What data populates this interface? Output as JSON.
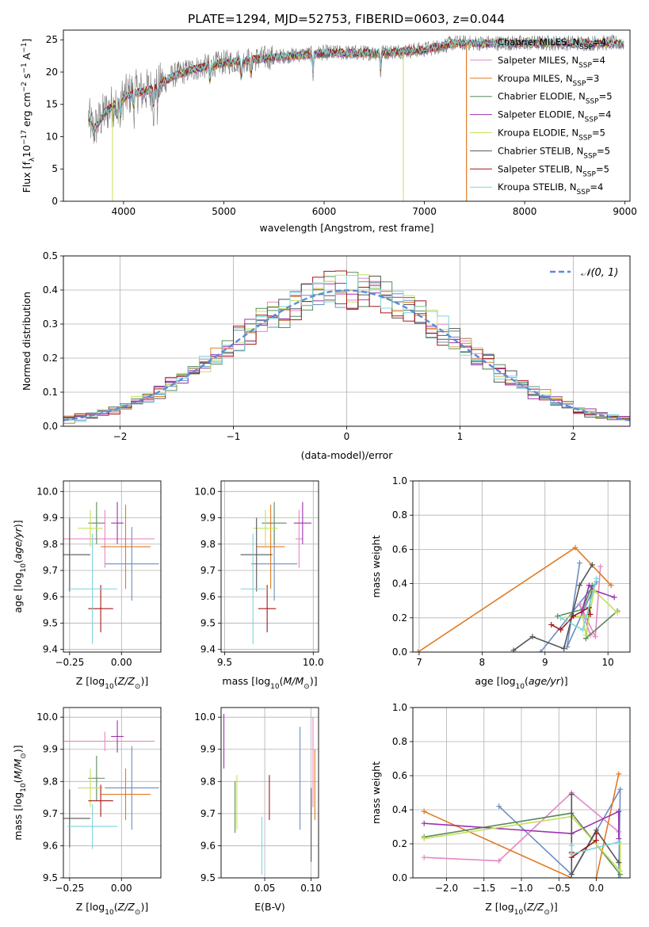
{
  "figure_title": "PLATE=1294, MJD=52753, FIBERID=0603, z=0.044",
  "colors": {
    "Chabrier MILES": "#6c8ebf",
    "Salpeter MILES": "#e587c6",
    "Kroupa MILES": "#e07b22",
    "Chabrier ELODIE": "#5a8a5a",
    "Salpeter ELODIE": "#9b32b0",
    "Kroupa ELODIE": "#c5e05a",
    "Chabrier STELIB": "#555555",
    "Salpeter STELIB": "#a31818",
    "Kroupa STELIB": "#7ed3db"
  },
  "chart_data": [
    {
      "id": "spectrum",
      "type": "line",
      "xlabel": "wavelength [Angstrom, rest frame]",
      "ylabel": "Flux [f_λ10^-17 erg cm^-2 s^-1 A^-1]",
      "xlim": [
        3400,
        9050
      ],
      "ylim": [
        0,
        26.5
      ],
      "xticks": [
        4000,
        5000,
        6000,
        7000,
        8000,
        9000
      ],
      "yticks": [
        0,
        5,
        10,
        15,
        20,
        25
      ],
      "legend_position": "right",
      "legend": [
        {
          "label": "Chabrier MILES, N",
          "sub": "SSP",
          "eq": "=4"
        },
        {
          "label": "Salpeter MILES, N",
          "sub": "SSP",
          "eq": "=4"
        },
        {
          "label": "Kroupa MILES, N",
          "sub": "SSP",
          "eq": "=3"
        },
        {
          "label": "Chabrier ELODIE, N",
          "sub": "SSP",
          "eq": "=5"
        },
        {
          "label": "Salpeter ELODIE, N",
          "sub": "SSP",
          "eq": "=4"
        },
        {
          "label": "Kroupa ELODIE, N",
          "sub": "SSP",
          "eq": "=5"
        },
        {
          "label": "Chabrier STELIB, N",
          "sub": "SSP",
          "eq": "=5"
        },
        {
          "label": "Salpeter STELIB, N",
          "sub": "SSP",
          "eq": "=5"
        },
        {
          "label": "Kroupa STELIB, N",
          "sub": "SSP",
          "eq": "=4"
        }
      ],
      "data_continuum": {
        "x": [
          3650,
          3700,
          3800,
          3900,
          4000,
          4100,
          4200,
          4300,
          4400,
          4500,
          4700,
          5000,
          5300,
          5600,
          6000,
          6500,
          7000,
          7300,
          7400
        ],
        "y": [
          13,
          11,
          13.5,
          15,
          16,
          17,
          17,
          17.5,
          18.5,
          19.5,
          20.5,
          21.5,
          22,
          22.5,
          23,
          23,
          23.5,
          24.5,
          24.5
        ]
      },
      "dips": [
        {
          "x": 3890,
          "y": 0,
          "series": "Kroupa ELODIE"
        },
        {
          "x": 6790,
          "y": 0,
          "series": "Kroupa ELODIE"
        },
        {
          "x": 7420,
          "y": 0,
          "series": "Kroupa MILES"
        }
      ]
    },
    {
      "id": "residuals",
      "type": "line",
      "xlabel": "(data-model)/error",
      "ylabel": "Normed distribution",
      "xlim": [
        -2.5,
        2.5
      ],
      "ylim": [
        0,
        0.5
      ],
      "xticks": [
        -2,
        -1,
        0,
        1,
        2
      ],
      "yticks": [
        0.0,
        0.1,
        0.2,
        0.3,
        0.4,
        0.5
      ],
      "legend": [
        {
          "label": "𝒩(0, 1)"
        }
      ],
      "legend_position": "top-right",
      "bin_width": 0.1
    },
    {
      "id": "age_vs_Z",
      "type": "scatter",
      "xlabel": "Z [log10(Z/Z⊙)]",
      "ylabel": "age  [log10(age/yr)]",
      "xlim": [
        -0.28,
        0.19
      ],
      "ylim": [
        9.39,
        10.04
      ],
      "xticks": [
        -0.25,
        0.0
      ],
      "yticks": [
        9.4,
        9.5,
        9.6,
        9.7,
        9.8,
        9.9,
        10.0
      ],
      "points": [
        {
          "series": "Chabrier MILES",
          "x": 0.05,
          "xerr": 0.13,
          "y": 9.725,
          "yerr": 0.14
        },
        {
          "series": "Salpeter MILES",
          "x": -0.08,
          "xerr": 0.24,
          "y": 9.82,
          "yerr": 0.11
        },
        {
          "series": "Kroupa MILES",
          "x": 0.02,
          "xerr": 0.12,
          "y": 9.79,
          "yerr": 0.16
        },
        {
          "series": "Chabrier ELODIE",
          "x": -0.12,
          "xerr": 0.04,
          "y": 9.88,
          "yerr": 0.08
        },
        {
          "series": "Salpeter ELODIE",
          "x": -0.02,
          "xerr": 0.03,
          "y": 9.88,
          "yerr": 0.08
        },
        {
          "series": "Kroupa ELODIE",
          "x": -0.15,
          "xerr": 0.06,
          "y": 9.86,
          "yerr": 0.07
        },
        {
          "series": "Chabrier STELIB",
          "x": -0.25,
          "xerr": 0.1,
          "y": 9.76,
          "yerr": 0.14
        },
        {
          "series": "Salpeter STELIB",
          "x": -0.1,
          "xerr": 0.06,
          "y": 9.555,
          "yerr": 0.09
        },
        {
          "series": "Kroupa STELIB",
          "x": -0.14,
          "xerr": 0.12,
          "y": 9.63,
          "yerr": 0.21
        }
      ]
    },
    {
      "id": "age_vs_mass",
      "type": "scatter",
      "xlabel": "mass [log10(M/M⊙)]",
      "ylabel": "",
      "xlim": [
        9.48,
        10.03
      ],
      "ylim": [
        9.39,
        10.04
      ],
      "xticks": [
        9.5,
        10.0
      ],
      "yticks": [
        9.4,
        9.5,
        9.6,
        9.7,
        9.8,
        9.9,
        10.0
      ],
      "points": [
        {
          "series": "Chabrier MILES",
          "x": 9.78,
          "xerr": 0.13,
          "y": 9.725,
          "yerr": 0.14
        },
        {
          "series": "Salpeter MILES",
          "x": 9.92,
          "xerr": 0.02,
          "y": 9.82,
          "yerr": 0.11
        },
        {
          "series": "Kroupa MILES",
          "x": 9.76,
          "xerr": 0.08,
          "y": 9.79,
          "yerr": 0.16
        },
        {
          "series": "Chabrier ELODIE",
          "x": 9.78,
          "xerr": 0.07,
          "y": 9.88,
          "yerr": 0.08
        },
        {
          "series": "Salpeter ELODIE",
          "x": 9.94,
          "xerr": 0.05,
          "y": 9.88,
          "yerr": 0.08
        },
        {
          "series": "Kroupa ELODIE",
          "x": 9.73,
          "xerr": 0.07,
          "y": 9.86,
          "yerr": 0.07
        },
        {
          "series": "Chabrier STELIB",
          "x": 9.68,
          "xerr": 0.09,
          "y": 9.76,
          "yerr": 0.14
        },
        {
          "series": "Salpeter STELIB",
          "x": 9.74,
          "xerr": 0.05,
          "y": 9.555,
          "yerr": 0.09
        },
        {
          "series": "Kroupa STELIB",
          "x": 9.66,
          "xerr": 0.07,
          "y": 9.63,
          "yerr": 0.21
        }
      ]
    },
    {
      "id": "weight_vs_age",
      "type": "line",
      "xlabel": "age  [log10(age/yr)]",
      "ylabel": "mass weight",
      "xlim": [
        6.9,
        10.35
      ],
      "ylim": [
        0,
        1.0
      ],
      "xticks": [
        7,
        8,
        9,
        10
      ],
      "yticks": [
        0.0,
        0.2,
        0.4,
        0.6,
        0.8,
        1.0
      ],
      "series": [
        {
          "name": "Chabrier MILES",
          "x": [
            9.55,
            9.35,
            9.82,
            8.93
          ],
          "y": [
            0.52,
            0.03,
            0.41,
            0.0
          ]
        },
        {
          "name": "Salpeter MILES",
          "x": [
            9.88,
            9.8,
            9.55,
            9.72
          ],
          "y": [
            0.5,
            0.09,
            0.28,
            0.1
          ]
        },
        {
          "name": "Kroupa MILES",
          "x": [
            6.98,
            9.48,
            10.05
          ],
          "y": [
            0.0,
            0.61,
            0.39
          ]
        },
        {
          "name": "Chabrier ELODIE",
          "x": [
            9.2,
            9.6,
            9.75,
            9.65,
            10.15
          ],
          "y": [
            0.21,
            0.25,
            0.39,
            0.08,
            0.24
          ]
        },
        {
          "name": "Salpeter ELODIE",
          "x": [
            9.58,
            9.7,
            9.78,
            10.1
          ],
          "y": [
            0.23,
            0.39,
            0.36,
            0.32
          ]
        },
        {
          "name": "Kroupa ELODIE",
          "x": [
            9.25,
            9.6,
            9.65,
            9.78,
            10.15
          ],
          "y": [
            0.2,
            0.21,
            0.1,
            0.36,
            0.23
          ]
        },
        {
          "name": "Chabrier STELIB",
          "x": [
            8.5,
            8.8,
            9.3,
            9.55,
            9.75
          ],
          "y": [
            0.01,
            0.09,
            0.02,
            0.39,
            0.51
          ]
        },
        {
          "name": "Salpeter STELIB",
          "x": [
            9.1,
            9.25,
            9.45,
            9.7,
            9.72
          ],
          "y": [
            0.16,
            0.13,
            0.21,
            0.26,
            0.22
          ]
        },
        {
          "name": "Kroupa STELIB",
          "x": [
            9.25,
            9.6,
            9.65,
            9.82
          ],
          "y": [
            0.2,
            0.13,
            0.2,
            0.43
          ]
        }
      ]
    },
    {
      "id": "mass_vs_Z",
      "type": "scatter",
      "xlabel": "Z [log10(Z/Z⊙)]",
      "ylabel": "mass [log10(M/M⊙)]",
      "xlim": [
        -0.28,
        0.19
      ],
      "ylim": [
        9.5,
        10.03
      ],
      "xticks": [
        -0.25,
        0.0
      ],
      "yticks": [
        9.5,
        9.6,
        9.7,
        9.8,
        9.9,
        10.0
      ],
      "points": [
        {
          "series": "Chabrier MILES",
          "x": 0.05,
          "xerr": 0.13,
          "y": 9.78,
          "yerr": 0.13
        },
        {
          "series": "Salpeter MILES",
          "x": -0.08,
          "xerr": 0.24,
          "y": 9.925,
          "yerr": 0.03
        },
        {
          "series": "Kroupa MILES",
          "x": 0.02,
          "xerr": 0.12,
          "y": 9.76,
          "yerr": 0.08
        },
        {
          "series": "Chabrier ELODIE",
          "x": -0.12,
          "xerr": 0.04,
          "y": 9.81,
          "yerr": 0.07
        },
        {
          "series": "Salpeter ELODIE",
          "x": -0.02,
          "xerr": 0.03,
          "y": 9.94,
          "yerr": 0.05
        },
        {
          "series": "Kroupa ELODIE",
          "x": -0.15,
          "xerr": 0.06,
          "y": 9.78,
          "yerr": 0.06
        },
        {
          "series": "Chabrier STELIB",
          "x": -0.25,
          "xerr": 0.1,
          "y": 9.685,
          "yerr": 0.09
        },
        {
          "series": "Salpeter STELIB",
          "x": -0.1,
          "xerr": 0.06,
          "y": 9.74,
          "yerr": 0.05
        },
        {
          "series": "Kroupa STELIB",
          "x": -0.14,
          "xerr": 0.12,
          "y": 9.66,
          "yerr": 0.07
        }
      ]
    },
    {
      "id": "mass_vs_ebv",
      "type": "scatter",
      "xlabel": "E(B-V)",
      "ylabel": "",
      "xlim": [
        0.003,
        0.108
      ],
      "ylim": [
        9.5,
        10.03
      ],
      "xticks": [
        0.05,
        0.1
      ],
      "yticks": [
        9.5,
        9.6,
        9.7,
        9.8,
        9.9,
        10.0
      ],
      "points": [
        {
          "series": "Chabrier MILES",
          "x": 0.088,
          "xerr": 0,
          "y": 9.81,
          "yerr": 0.16
        },
        {
          "series": "Salpeter MILES",
          "x": 0.102,
          "xerr": 0,
          "y": 9.86,
          "yerr": 0.14
        },
        {
          "series": "Kroupa MILES",
          "x": 0.104,
          "xerr": 0,
          "y": 9.79,
          "yerr": 0.11
        },
        {
          "series": "Chabrier ELODIE",
          "x": 0.018,
          "xerr": 0,
          "y": 9.72,
          "yerr": 0.08
        },
        {
          "series": "Salpeter ELODIE",
          "x": 0.006,
          "xerr": 0,
          "y": 9.925,
          "yerr": 0.085
        },
        {
          "series": "Kroupa ELODIE",
          "x": 0.02,
          "xerr": 0,
          "y": 9.735,
          "yerr": 0.085
        },
        {
          "series": "Chabrier STELIB",
          "x": 0.1,
          "xerr": 0,
          "y": 9.665,
          "yerr": 0.115
        },
        {
          "series": "Salpeter STELIB",
          "x": 0.055,
          "xerr": 0,
          "y": 9.75,
          "yerr": 0.07
        },
        {
          "series": "Kroupa STELIB",
          "x": 0.047,
          "xerr": 0,
          "y": 9.6,
          "yerr": 0.09
        }
      ]
    },
    {
      "id": "weight_vs_Z",
      "type": "line",
      "xlabel": "Z [log10(Z/Z⊙)]",
      "ylabel": "mass weight",
      "xlim": [
        -2.45,
        0.45
      ],
      "ylim": [
        0,
        1.0
      ],
      "xticks": [
        -2.0,
        -1.5,
        -1.0,
        -0.5,
        0.0
      ],
      "yticks": [
        0.0,
        0.2,
        0.4,
        0.6,
        0.8,
        1.0
      ],
      "series": [
        {
          "name": "Chabrier MILES",
          "x": [
            -1.3,
            -0.33,
            0.32,
            0.3
          ],
          "y": [
            0.42,
            0.02,
            0.52,
            0.0
          ]
        },
        {
          "name": "Salpeter MILES",
          "x": [
            -2.3,
            -1.3,
            -0.33,
            0.3
          ],
          "y": [
            0.12,
            0.1,
            0.5,
            0.27
          ]
        },
        {
          "name": "Kroupa MILES",
          "x": [
            -2.3,
            -0.33,
            0.0,
            0.3
          ],
          "y": [
            0.39,
            0.0,
            0.0,
            0.61
          ]
        },
        {
          "name": "Chabrier ELODIE",
          "x": [
            -2.3,
            -0.33,
            0.32
          ],
          "y": [
            0.24,
            0.38,
            0.02
          ]
        },
        {
          "name": "Salpeter ELODIE",
          "x": [
            -2.3,
            -0.33,
            0.3,
            0.3
          ],
          "y": [
            0.32,
            0.26,
            0.39,
            0.23
          ]
        },
        {
          "name": "Kroupa ELODIE",
          "x": [
            -2.3,
            -0.33,
            0.32,
            0.32
          ],
          "y": [
            0.23,
            0.36,
            0.04,
            0.2
          ]
        },
        {
          "name": "Chabrier STELIB",
          "x": [
            -0.33,
            -0.33,
            0.0,
            0.3
          ],
          "y": [
            0.49,
            0.02,
            0.28,
            0.09
          ]
        },
        {
          "name": "Salpeter STELIB",
          "x": [
            -0.33,
            -0.33,
            0.0,
            0.0
          ],
          "y": [
            0.15,
            0.12,
            0.22,
            0.26
          ]
        },
        {
          "name": "Kroupa STELIB",
          "x": [
            -0.33,
            -0.33,
            0.3
          ],
          "y": [
            0.19,
            0.14,
            0.21
          ]
        }
      ]
    }
  ]
}
